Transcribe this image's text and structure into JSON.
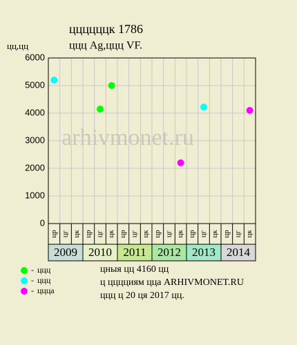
{
  "chart_data": {
    "type": "scatter",
    "title": "ццццццк 1786",
    "subtitle": "ццц Ag,ццц VF.",
    "ylabel": "цц,цц",
    "categories": [
      "цр",
      "цг",
      "цк",
      "цр",
      "цг",
      "цк",
      "цр",
      "цг",
      "цк",
      "цр",
      "цг",
      "цк",
      "цр",
      "цг",
      "цк",
      "цр",
      "цг",
      "цк"
    ],
    "groups": [
      {
        "label": "2009",
        "color": "#c8dcd8"
      },
      {
        "label": "2010",
        "color": "#e8f0c8"
      },
      {
        "label": "2011",
        "color": "#c8e890"
      },
      {
        "label": "2012",
        "color": "#a8e8a0"
      },
      {
        "label": "2013",
        "color": "#a0e8c8"
      },
      {
        "label": "2014",
        "color": "#d8d8d8"
      }
    ],
    "series": [
      {
        "name": "ццц",
        "color": "#00ff00",
        "values": [
          null,
          null,
          null,
          null,
          4150,
          5000,
          null,
          null,
          null,
          null,
          null,
          null,
          null,
          null,
          null,
          null,
          null,
          null
        ]
      },
      {
        "name": "ццц",
        "color": "#00ffff",
        "values": [
          5200,
          null,
          null,
          null,
          null,
          null,
          null,
          null,
          null,
          null,
          null,
          null,
          null,
          4220,
          null,
          null,
          null,
          null
        ]
      },
      {
        "name": "цццa",
        "color": "#ff00ff",
        "values": [
          null,
          null,
          null,
          null,
          null,
          null,
          null,
          null,
          null,
          null,
          null,
          2200,
          null,
          null,
          null,
          null,
          null,
          4100
        ]
      }
    ],
    "ylim": [
      0,
      6000
    ],
    "yticks": [
      0,
      1000,
      2000,
      3000,
      4000,
      5000,
      6000
    ],
    "grid": true,
    "notes": [
      "цныя цц 4160 цц",
      "ц цццциям цца ARHIVMONET.RU",
      "ццц ц 20 ця 2017 цц."
    ]
  }
}
